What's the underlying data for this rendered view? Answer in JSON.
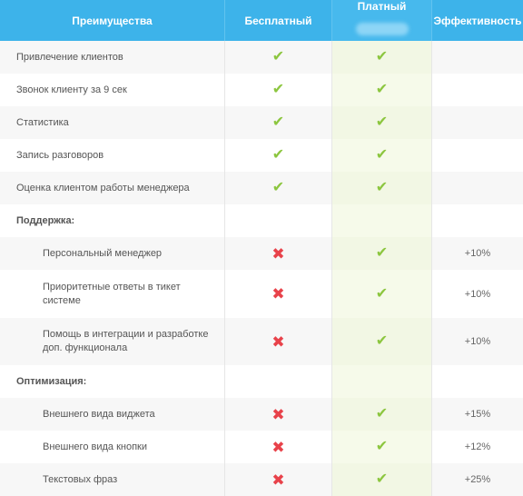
{
  "header": {
    "col_advantages": "Преимущества",
    "col_free": "Бесплатный",
    "col_paid": "Платный",
    "col_efficiency": "Эффективность"
  },
  "colors": {
    "header_bg": "#3db3ea",
    "check": "#8cc63f",
    "cross": "#e8424a",
    "paid_column_bg": "#f6faea"
  },
  "rows": [
    {
      "type": "item",
      "label": "Привлечение клиентов",
      "free": "check",
      "paid": "check",
      "efficiency": ""
    },
    {
      "type": "item",
      "label": "Звонок клиенту за 9 сек",
      "free": "check",
      "paid": "check",
      "efficiency": ""
    },
    {
      "type": "item",
      "label": "Статистика",
      "free": "check",
      "paid": "check",
      "efficiency": ""
    },
    {
      "type": "item",
      "label": "Запись разговоров",
      "free": "check",
      "paid": "check",
      "efficiency": ""
    },
    {
      "type": "item",
      "label": "Оценка клиентом работы менеджера",
      "free": "check",
      "paid": "check",
      "efficiency": ""
    },
    {
      "type": "section",
      "label": "Поддержка:"
    },
    {
      "type": "sub",
      "label": "Персональный менеджер",
      "free": "cross",
      "paid": "check",
      "efficiency": "+10%"
    },
    {
      "type": "sub",
      "label": "Приоритетные ответы в тикет системе",
      "free": "cross",
      "paid": "check",
      "efficiency": "+10%"
    },
    {
      "type": "sub",
      "label": "Помощь в интеграции и разработке доп. функционала",
      "free": "cross",
      "paid": "check",
      "efficiency": "+10%"
    },
    {
      "type": "section",
      "label": "Оптимизация:"
    },
    {
      "type": "sub",
      "label": "Внешнего вида виджета",
      "free": "cross",
      "paid": "check",
      "efficiency": "+15%"
    },
    {
      "type": "sub",
      "label": "Внешнего вида кнопки",
      "free": "cross",
      "paid": "check",
      "efficiency": "+12%"
    },
    {
      "type": "sub",
      "label": "Текстовых фраз",
      "free": "cross",
      "paid": "check",
      "efficiency": "+25%"
    }
  ]
}
